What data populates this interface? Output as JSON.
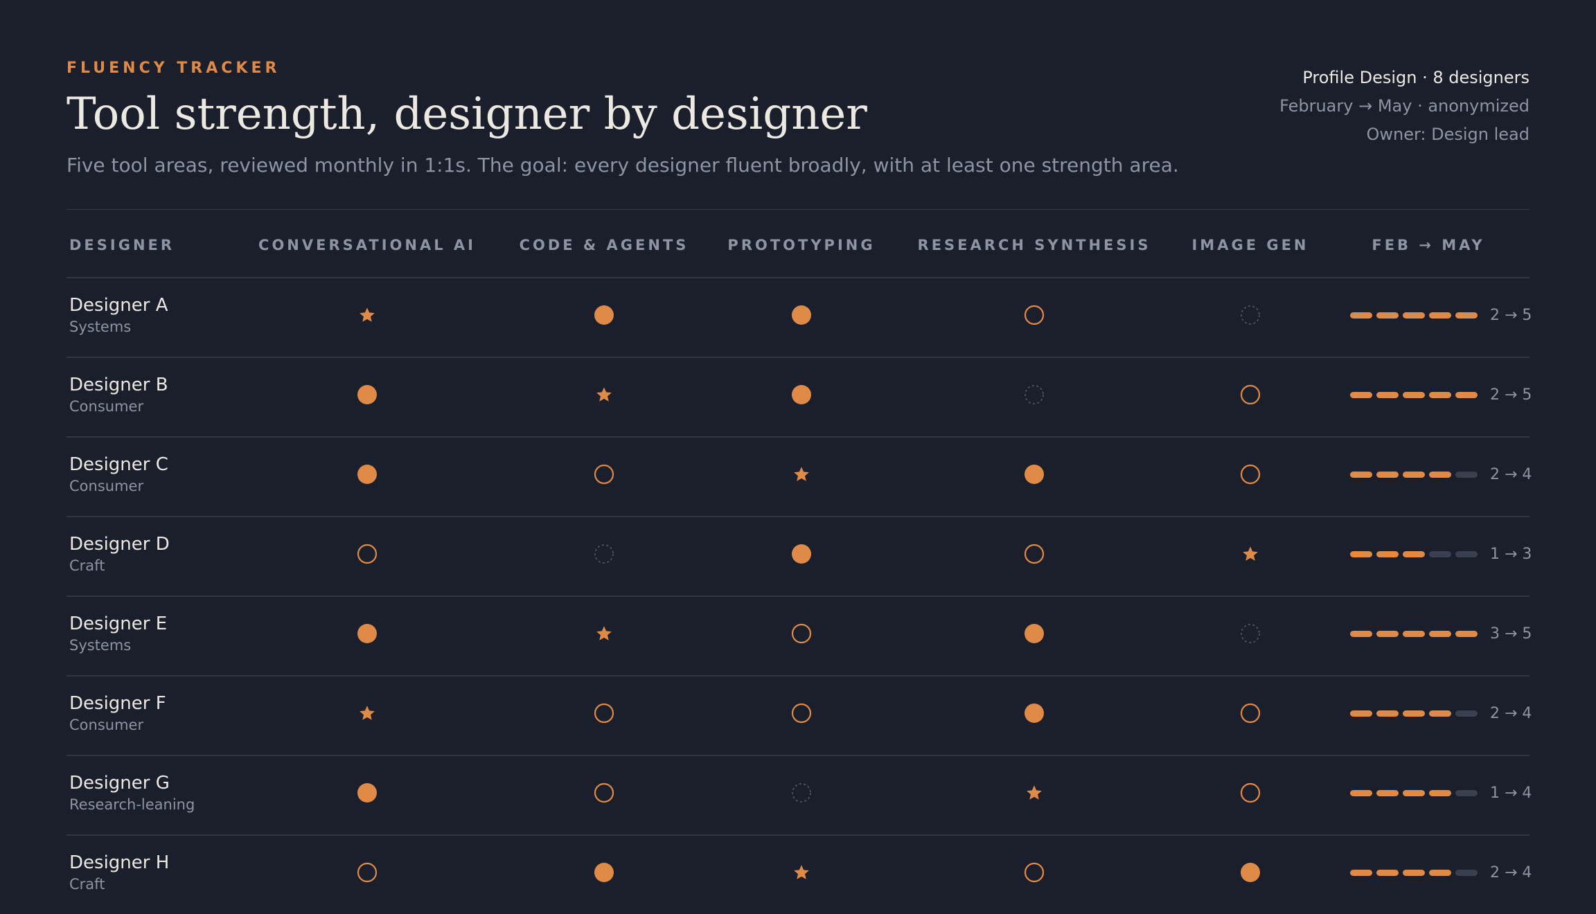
{
  "header": {
    "eyebrow": "FLUENCY TRACKER",
    "title": "Tool strength, designer by designer",
    "subtitle": "Five tool areas, reviewed monthly in 1:1s. The goal: every designer fluent broadly, with at least one strength area.",
    "meta_line1": "Profile Design · 8 designers",
    "meta_line2": "February → May · anonymized",
    "meta_line3": "Owner: Design lead"
  },
  "colors": {
    "accent": "#e08a48",
    "background": "#1b1f2c",
    "muted_text": "#8e94a3",
    "dim_outline": "#4b5162"
  },
  "table": {
    "columns": [
      "DESIGNER",
      "CONVERSATIONAL AI",
      "CODE & AGENTS",
      "PROTOTYPING",
      "RESEARCH SYNTHESIS",
      "IMAGE GEN",
      "FEB → MAY"
    ],
    "mark_legend": {
      "star": "star-icon",
      "filled": "filled-circle-icon",
      "outline": "outline-circle-icon",
      "dashed": "dashed-circle-icon"
    },
    "rows": [
      {
        "name": "Designer A",
        "team": "Systems",
        "marks": [
          "star",
          "filled",
          "filled",
          "outline",
          "dashed"
        ],
        "trend_level": 5,
        "trend_max": 5,
        "trend_text": "2 → 5"
      },
      {
        "name": "Designer B",
        "team": "Consumer",
        "marks": [
          "filled",
          "star",
          "filled",
          "dashed",
          "outline"
        ],
        "trend_level": 5,
        "trend_max": 5,
        "trend_text": "2 → 5"
      },
      {
        "name": "Designer C",
        "team": "Consumer",
        "marks": [
          "filled",
          "outline",
          "star",
          "filled",
          "outline"
        ],
        "trend_level": 4,
        "trend_max": 5,
        "trend_text": "2 → 4"
      },
      {
        "name": "Designer D",
        "team": "Craft",
        "marks": [
          "outline",
          "dashed",
          "filled",
          "outline",
          "star"
        ],
        "trend_level": 3,
        "trend_max": 5,
        "trend_text": "1 → 3"
      },
      {
        "name": "Designer E",
        "team": "Systems",
        "marks": [
          "filled",
          "star",
          "outline",
          "filled",
          "dashed"
        ],
        "trend_level": 5,
        "trend_max": 5,
        "trend_text": "3 → 5"
      },
      {
        "name": "Designer F",
        "team": "Consumer",
        "marks": [
          "star",
          "outline",
          "outline",
          "filled",
          "outline"
        ],
        "trend_level": 4,
        "trend_max": 5,
        "trend_text": "2 → 4"
      },
      {
        "name": "Designer G",
        "team": "Research-leaning",
        "marks": [
          "filled",
          "outline",
          "dashed",
          "star",
          "outline"
        ],
        "trend_level": 4,
        "trend_max": 5,
        "trend_text": "1 → 4"
      },
      {
        "name": "Designer H",
        "team": "Craft",
        "marks": [
          "outline",
          "filled",
          "star",
          "outline",
          "filled"
        ],
        "trend_level": 4,
        "trend_max": 5,
        "trend_text": "2 → 4"
      }
    ]
  }
}
